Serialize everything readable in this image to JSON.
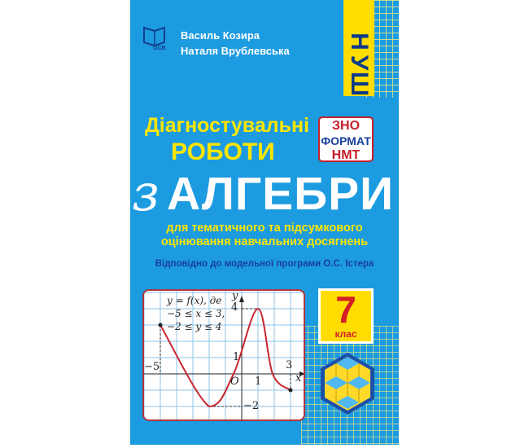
{
  "authors": [
    "Василь Козира",
    "Наталя Врублевська"
  ],
  "publisher_logo": "Освіта",
  "series_badge": [
    "Н",
    "У",
    "Ш"
  ],
  "title": {
    "line1": "Діагностувальні",
    "line2": "РОБОТИ",
    "prefix": "з",
    "subject": "АЛГЕБРИ"
  },
  "exam_badge": [
    "ЗНО",
    "ФОРМАТ",
    "НМТ"
  ],
  "subtitle": [
    "для тематичного та підсумкового",
    "оцінювання навчальних досягнень"
  ],
  "program_note": "Відповідно до модельної програми О.С. Істера",
  "grade": {
    "number": "7",
    "label": "клас"
  },
  "graph": {
    "caption": [
      "y = f(x), де",
      "−5 ≤ x ≤ 3,",
      "−2 ≤ y ≤ 4"
    ],
    "axis_x": "x",
    "axis_y": "y",
    "origin": "O",
    "labels": {
      "x_min": "−5",
      "x_one": "1",
      "x_max": "3",
      "y_one": "1",
      "y_max": "4",
      "y_min": "−2"
    },
    "curve_points": [
      [
        -5,
        3
      ],
      [
        -2,
        -2
      ],
      [
        -0.5,
        0
      ],
      [
        1,
        4
      ],
      [
        1.9,
        0
      ],
      [
        3,
        -1
      ]
    ]
  },
  "colors": {
    "background": "#1c9be0",
    "accent_yellow": "#ffdd00",
    "curve": "#c8262e"
  }
}
